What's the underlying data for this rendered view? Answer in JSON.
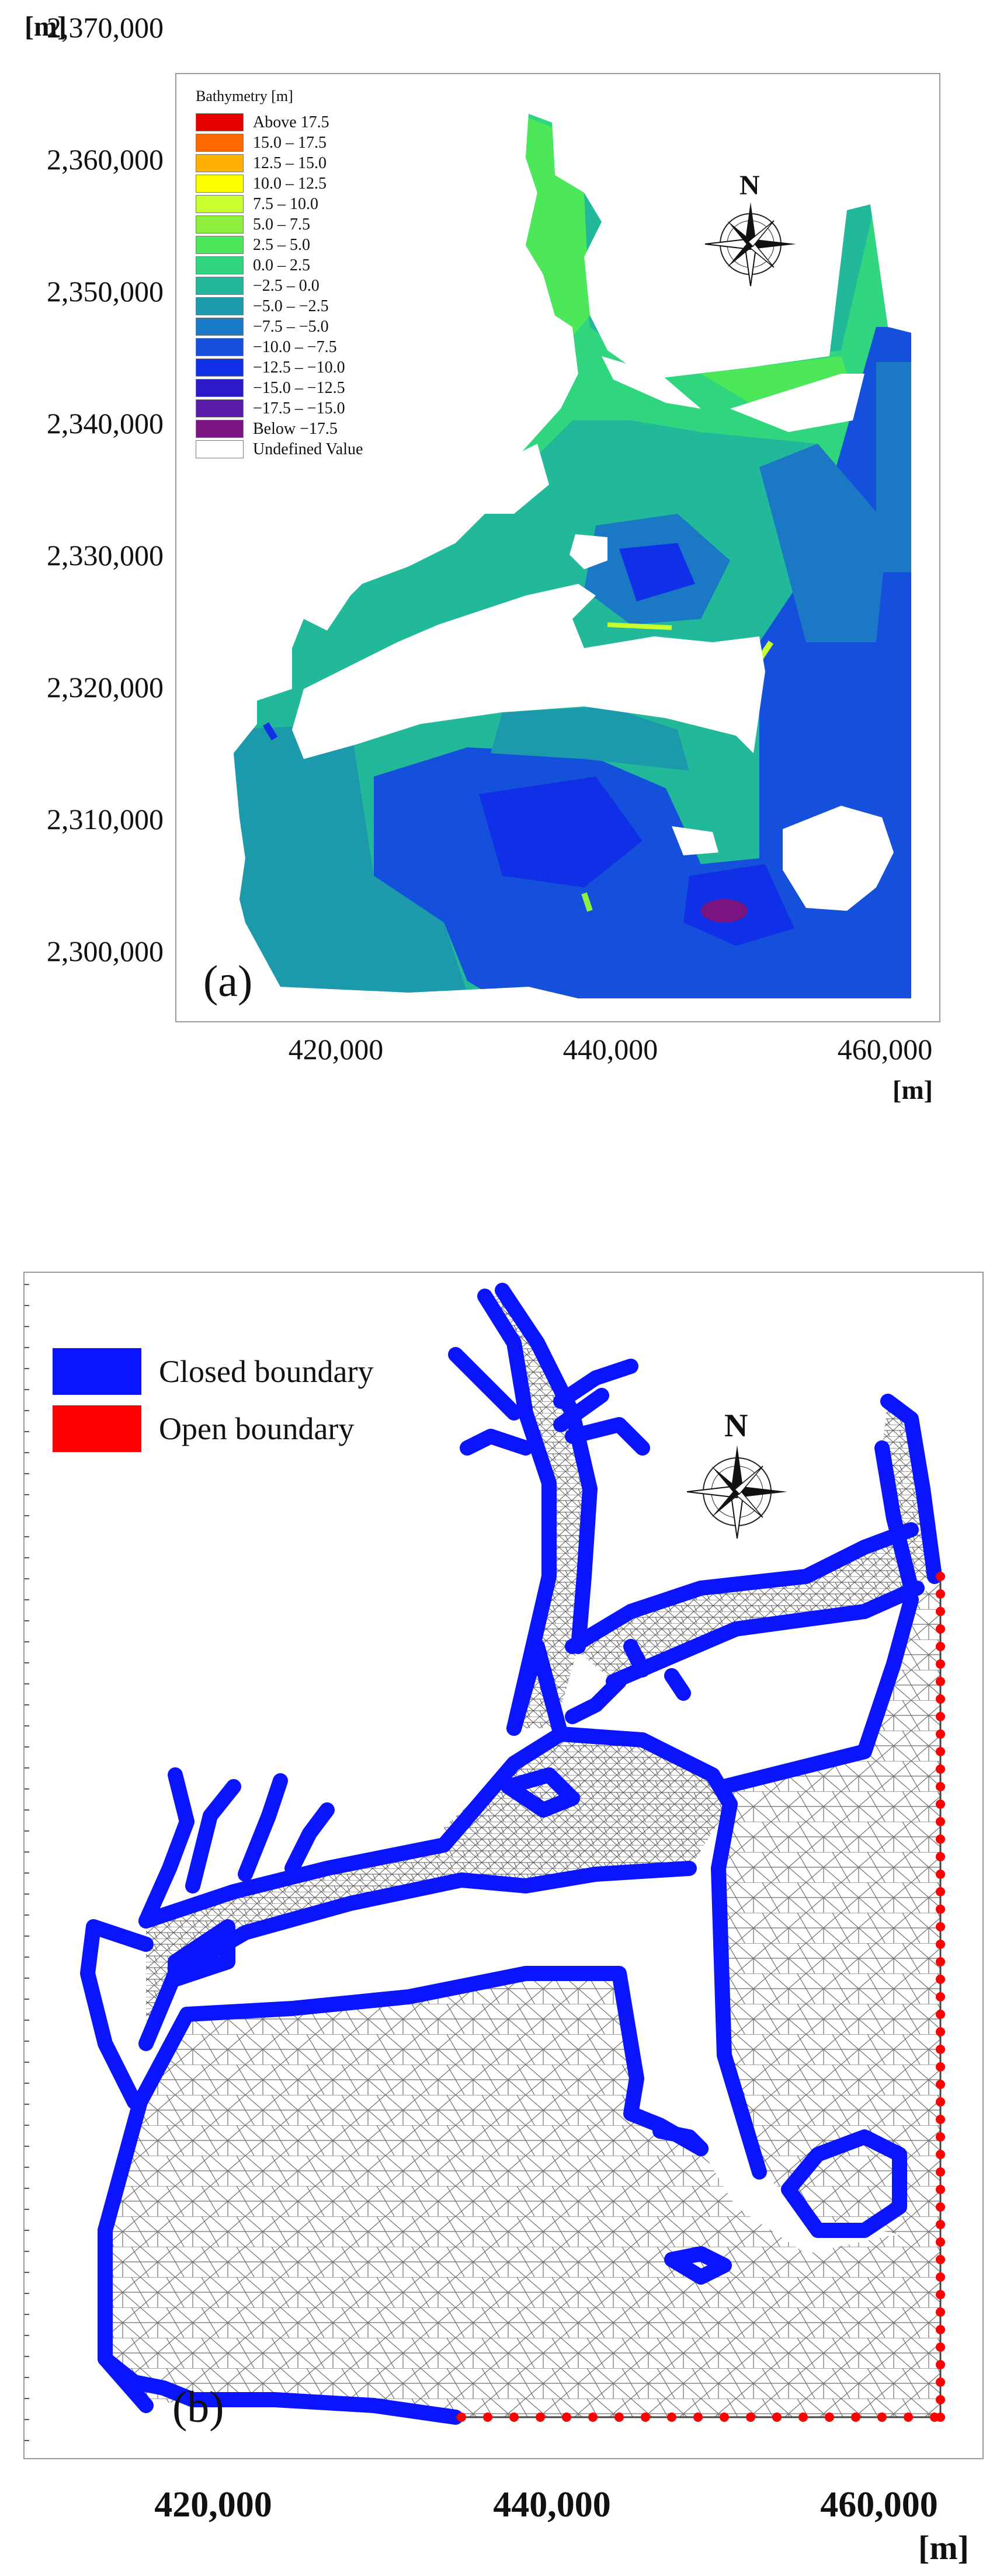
{
  "panel_a": {
    "label": "(a)",
    "x_unit": "[m]",
    "y_unit": "[m]",
    "y_ticks": [
      "2,370,000",
      "2,360,000",
      "2,350,000",
      "2,340,000",
      "2,330,000",
      "2,320,000",
      "2,310,000",
      "2,300,000"
    ],
    "x_ticks": [
      "420,000",
      "440,000",
      "460,000"
    ],
    "north_label": "N",
    "legend": {
      "title": "Bathymetry [m]",
      "items": [
        {
          "label": "Above  17.5",
          "color": "#e60000"
        },
        {
          "label": "15.0 – 17.5",
          "color": "#ff6a00"
        },
        {
          "label": "12.5 – 15.0",
          "color": "#ffb000"
        },
        {
          "label": "10.0 – 12.5",
          "color": "#ffff00"
        },
        {
          "label": "7.5 – 10.0",
          "color": "#c8ff2e"
        },
        {
          "label": "5.0 – 7.5",
          "color": "#8cf03c"
        },
        {
          "label": "2.5 – 5.0",
          "color": "#4ce85a"
        },
        {
          "label": "0.0 – 2.5",
          "color": "#2fd67e"
        },
        {
          "label": "−2.5 – 0.0",
          "color": "#22b89a"
        },
        {
          "label": "−5.0 – −2.5",
          "color": "#1c9aac"
        },
        {
          "label": "−7.5 – −5.0",
          "color": "#1a78c4"
        },
        {
          "label": "−10.0 – −7.5",
          "color": "#1550dc"
        },
        {
          "label": "−12.5 – −10.0",
          "color": "#1030e8"
        },
        {
          "label": "−15.0 – −12.5",
          "color": "#2a1ac8"
        },
        {
          "label": "−17.5 – −15.0",
          "color": "#5a1aa8"
        },
        {
          "label": "Below  −17.5",
          "color": "#7a1480"
        },
        {
          "label": "Undefined Value",
          "color": "#ffffff"
        }
      ]
    }
  },
  "panel_b": {
    "label": "(b)",
    "x_unit": "[m]",
    "x_ticks": [
      "420,000",
      "440,000",
      "460,000"
    ],
    "north_label": "N",
    "legend": {
      "items": [
        {
          "label": "Closed boundary",
          "color": "#0a14ff"
        },
        {
          "label": "Open boundary",
          "color": "#ff0000"
        }
      ]
    }
  }
}
